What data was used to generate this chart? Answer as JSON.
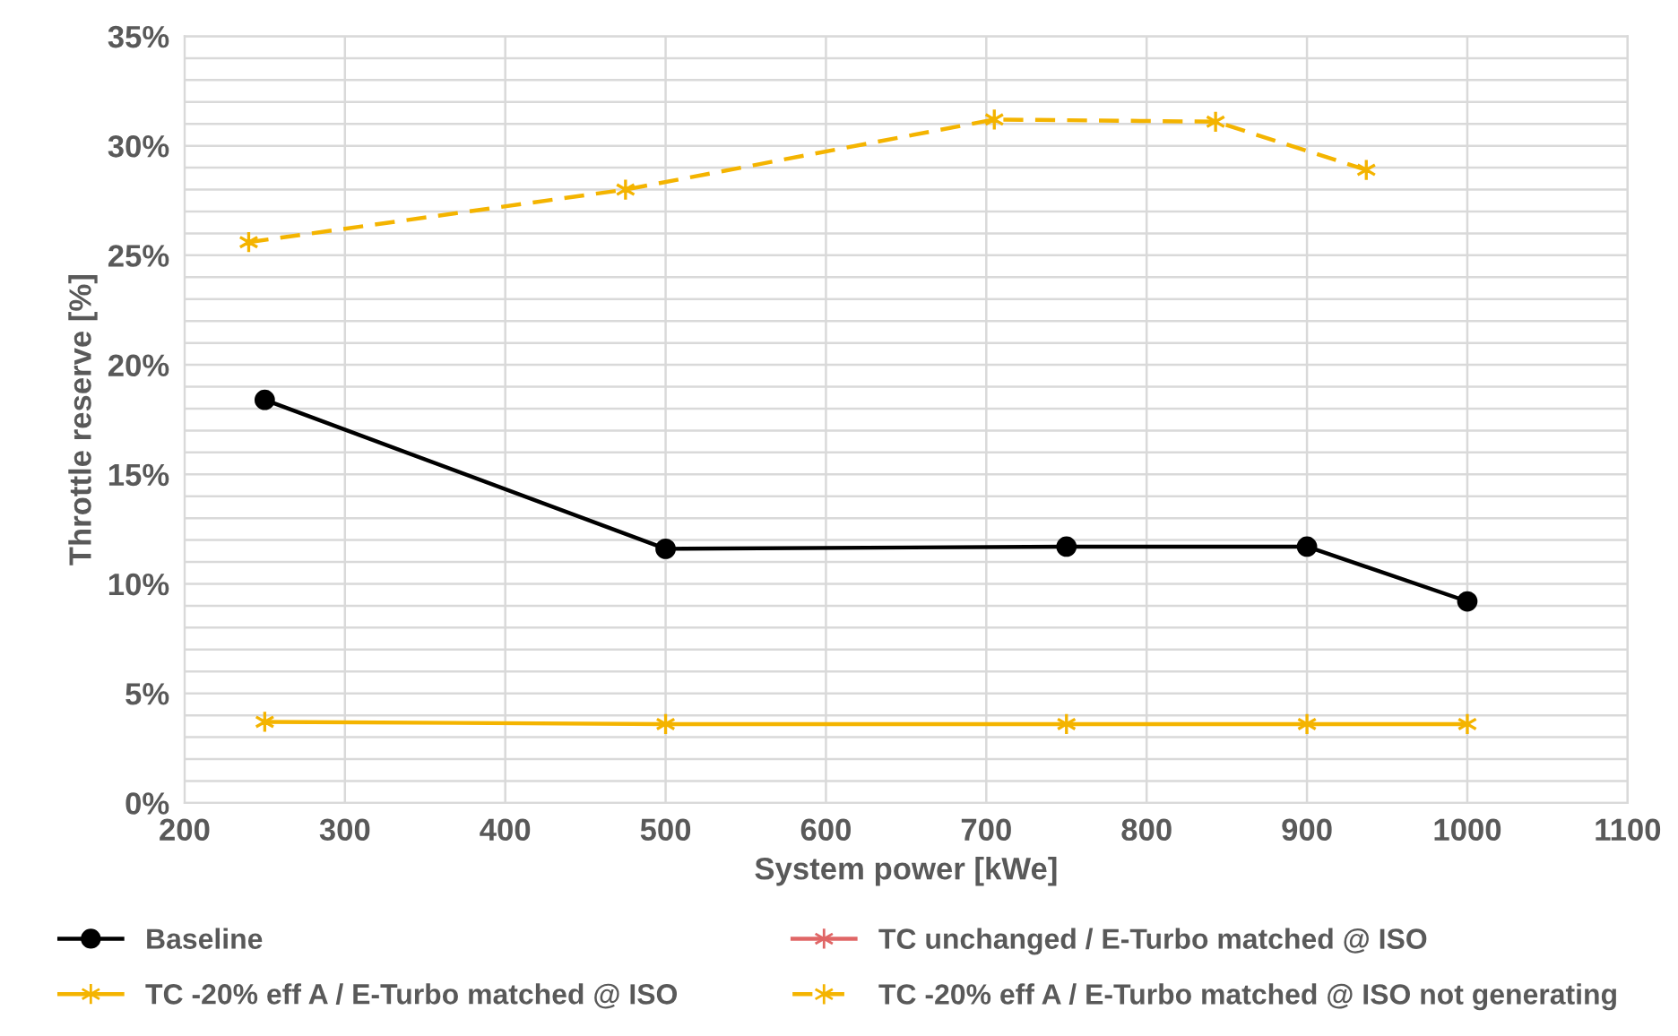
{
  "chart_data": {
    "type": "line",
    "xlabel": "System power [kWe]",
    "ylabel": "Throttle reserve [%]",
    "xlim": [
      200,
      1100
    ],
    "xticks": [
      200,
      300,
      400,
      500,
      600,
      700,
      800,
      900,
      1000,
      1100
    ],
    "ylim": [
      0,
      35
    ],
    "yticks": [
      {
        "value": 0,
        "label": "0%"
      },
      {
        "value": 1,
        "label": null
      },
      {
        "value": 2,
        "label": null
      },
      {
        "value": 3,
        "label": null
      },
      {
        "value": 4,
        "label": null
      },
      {
        "value": 5,
        "label": "5%"
      },
      {
        "value": 6,
        "label": null
      },
      {
        "value": 7,
        "label": null
      },
      {
        "value": 8,
        "label": null
      },
      {
        "value": 9,
        "label": null
      },
      {
        "value": 10,
        "label": "10%"
      },
      {
        "value": 11,
        "label": null
      },
      {
        "value": 12,
        "label": null
      },
      {
        "value": 13,
        "label": null
      },
      {
        "value": 14,
        "label": null
      },
      {
        "value": 15,
        "label": "15%"
      },
      {
        "value": 16,
        "label": null
      },
      {
        "value": 17,
        "label": null
      },
      {
        "value": 18,
        "label": null
      },
      {
        "value": 19,
        "label": null
      },
      {
        "value": 20,
        "label": "20%"
      },
      {
        "value": 21,
        "label": null
      },
      {
        "value": 22,
        "label": null
      },
      {
        "value": 23,
        "label": null
      },
      {
        "value": 24,
        "label": null
      },
      {
        "value": 25,
        "label": "25%"
      },
      {
        "value": 26,
        "label": null
      },
      {
        "value": 27,
        "label": null
      },
      {
        "value": 28,
        "label": null
      },
      {
        "value": 29,
        "label": null
      },
      {
        "value": 30,
        "label": "30%"
      },
      {
        "value": 31,
        "label": null
      },
      {
        "value": 32,
        "label": null
      },
      {
        "value": 33,
        "label": null
      },
      {
        "value": 34,
        "label": null
      },
      {
        "value": 35,
        "label": "35%"
      }
    ],
    "grid": true,
    "legend": "bottom",
    "series": [
      {
        "name": "Baseline",
        "color": "#000000",
        "marker": "circle",
        "line_style": "solid",
        "x": [
          250,
          500,
          750,
          900,
          1000
        ],
        "values": [
          18.4,
          11.6,
          11.7,
          11.7,
          9.2
        ]
      },
      {
        "name": "TC unchanged / E-Turbo matched @ ISO",
        "color": "#e06666",
        "marker": "cross",
        "line_style": "solid"
      },
      {
        "name": "TC -20% eff A / E-Turbo matched @ ISO",
        "color": "#f4b400",
        "marker": "cross",
        "line_style": "solid",
        "x": [
          250,
          500,
          750,
          900,
          1000
        ],
        "values": [
          3.7,
          3.6,
          3.6,
          3.6,
          3.6
        ]
      },
      {
        "name": "TC -20% eff A / E-Turbo matched @ ISO not generating",
        "color": "#f4b400",
        "marker": "cross",
        "line_style": "dashed",
        "x": [
          240,
          475,
          705,
          843,
          937
        ],
        "values": [
          25.6,
          28.0,
          31.2,
          31.1,
          28.9
        ]
      }
    ]
  }
}
